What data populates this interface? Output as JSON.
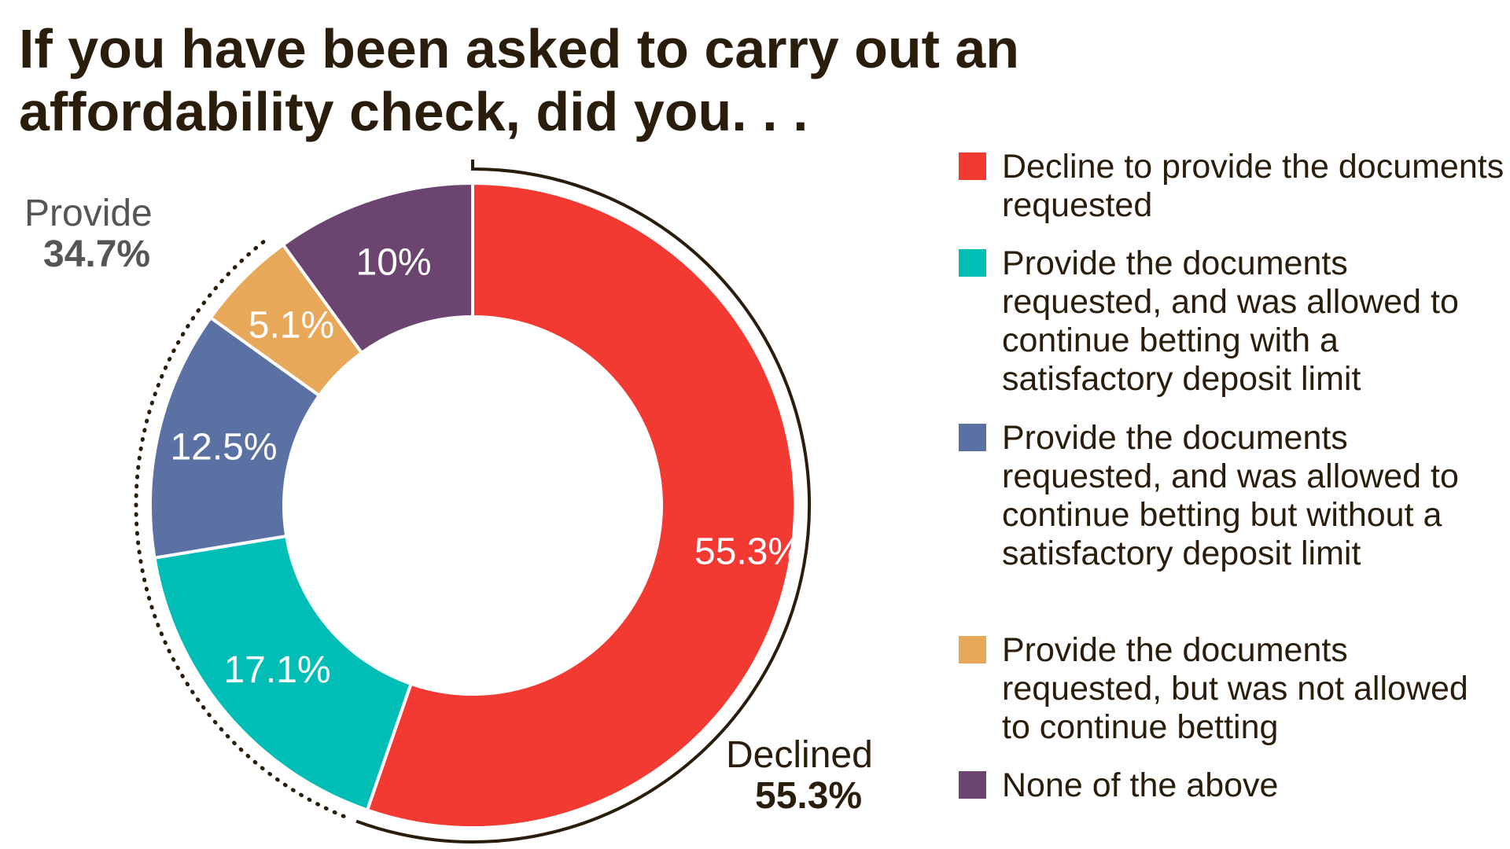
{
  "title_line1": "If you have been asked to carry out an",
  "title_line2": "affordability check, did you. . .",
  "groups": {
    "provide": {
      "label": "Provide",
      "value": "34.7%"
    },
    "declined": {
      "label": "Declined",
      "value": "55.3%"
    }
  },
  "chart_data": {
    "type": "pie",
    "donut": true,
    "title": "If you have been asked to carry out an affordability check, did you. . .",
    "slices": [
      {
        "name": "Decline to provide the documents requested",
        "value": 55.3,
        "label": "55.3%",
        "color": "#F23A33"
      },
      {
        "name": "Provide the documents requested, and was allowed to continue betting with a satisfactory deposit limit",
        "value": 17.1,
        "label": "17.1%",
        "color": "#00BDB5"
      },
      {
        "name": "Provide the documents requested, and was allowed to continue betting but without a satisfactory deposit limit",
        "value": 12.5,
        "label": "12.5%",
        "color": "#5B70A3"
      },
      {
        "name": "Provide the documents requested, but was not allowed to continue betting",
        "value": 5.1,
        "label": "5.1%",
        "color": "#E8A85A"
      },
      {
        "name": "None of the above",
        "value": 10,
        "label": "10%",
        "color": "#6B4570"
      }
    ],
    "legend_placement": "right"
  }
}
